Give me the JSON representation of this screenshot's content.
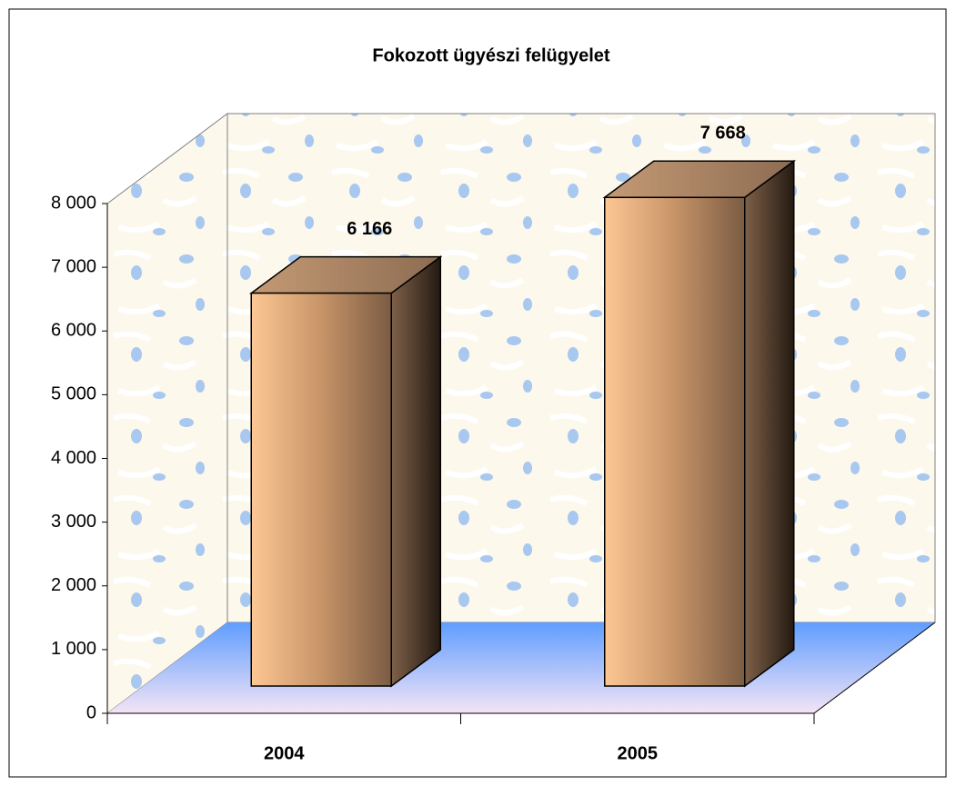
{
  "chart_data": {
    "type": "bar3d",
    "title": "Fokozott ügyészi felügyelet",
    "categories": [
      "2004",
      "2005"
    ],
    "values": [
      6166,
      7668
    ],
    "value_labels": [
      "6 166",
      "7 668"
    ],
    "ylim": [
      0,
      8000
    ],
    "yticks": [
      0,
      {
        "value": 1000,
        "label": "1 000"
      },
      {
        "value": 2000,
        "label": "2 000"
      },
      {
        "value": 3000,
        "label": "3 000"
      },
      {
        "value": 4000,
        "label": "4 000"
      },
      {
        "value": 5000,
        "label": "5 000"
      },
      {
        "value": 6000,
        "label": "6 000"
      },
      {
        "value": 7000,
        "label": "7 000"
      },
      {
        "value": 8000,
        "label": "8 000"
      }
    ],
    "grid": false
  }
}
